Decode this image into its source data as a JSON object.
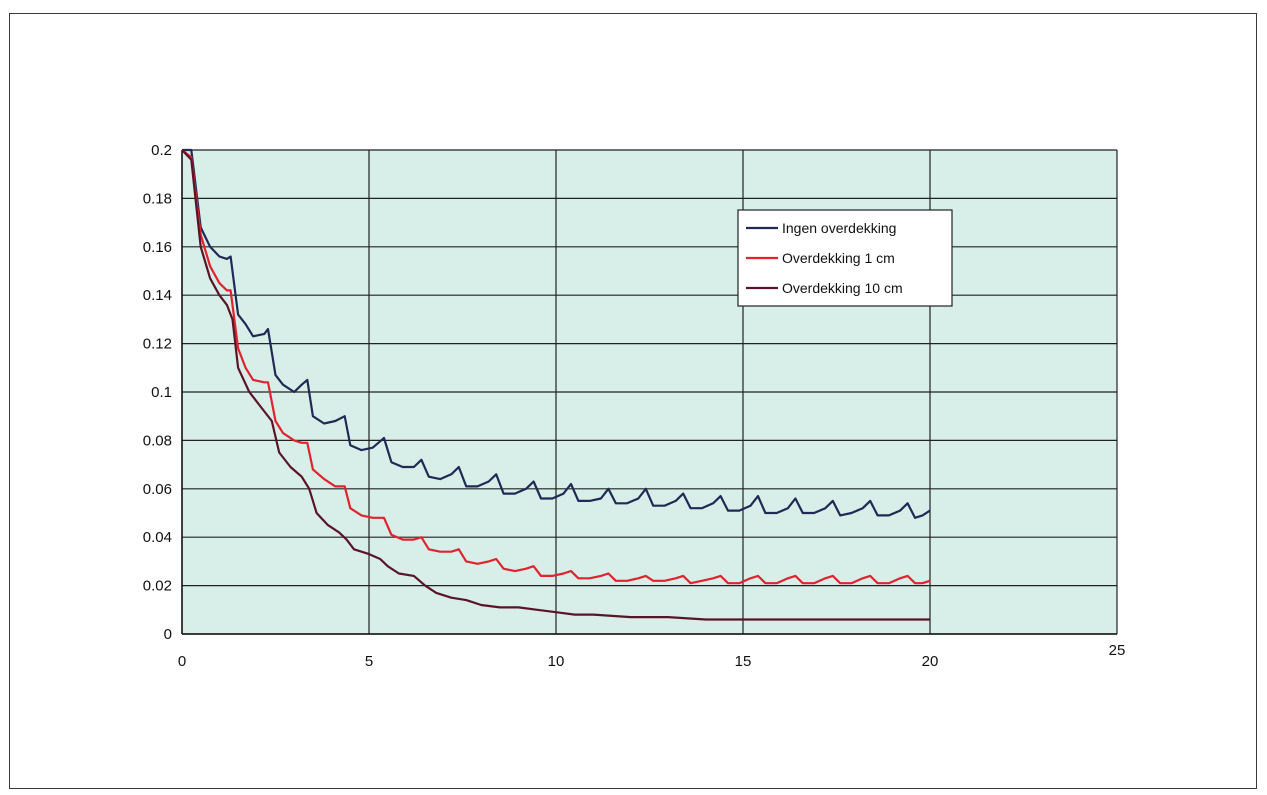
{
  "chart_data": {
    "type": "line",
    "title": "",
    "xlabel": "",
    "ylabel": "",
    "xlim": [
      0,
      25
    ],
    "ylim": [
      0,
      0.2
    ],
    "x_ticks": [
      0,
      5,
      10,
      15,
      20,
      25
    ],
    "y_ticks": [
      0,
      0.02,
      0.04,
      0.06,
      0.08,
      0.1,
      0.12,
      0.14,
      0.16,
      0.18,
      0.2
    ],
    "x_tick_labels": [
      "0",
      "5",
      "10",
      "15",
      "20",
      "25"
    ],
    "y_tick_labels": [
      "0",
      "0.02",
      "0.04",
      "0.06",
      "0.08",
      "0.1",
      "0.12",
      "0.14",
      "0.16",
      "0.18",
      "0.2"
    ],
    "grid": true,
    "legend_position": "top-right",
    "plot_background": "#d8eee8",
    "series": [
      {
        "name": "Ingen overdekking",
        "color": "#1f2a55",
        "points": [
          [
            0,
            0.2
          ],
          [
            0.25,
            0.2
          ],
          [
            0.5,
            0.168
          ],
          [
            0.75,
            0.16
          ],
          [
            1.0,
            0.156
          ],
          [
            1.2,
            0.155
          ],
          [
            1.3,
            0.156
          ],
          [
            1.5,
            0.132
          ],
          [
            1.7,
            0.128
          ],
          [
            1.9,
            0.123
          ],
          [
            2.2,
            0.124
          ],
          [
            2.3,
            0.126
          ],
          [
            2.5,
            0.107
          ],
          [
            2.7,
            0.103
          ],
          [
            3.0,
            0.1
          ],
          [
            3.2,
            0.103
          ],
          [
            3.35,
            0.105
          ],
          [
            3.5,
            0.09
          ],
          [
            3.8,
            0.087
          ],
          [
            4.1,
            0.088
          ],
          [
            4.35,
            0.09
          ],
          [
            4.5,
            0.078
          ],
          [
            4.8,
            0.076
          ],
          [
            5.1,
            0.077
          ],
          [
            5.4,
            0.081
          ],
          [
            5.6,
            0.071
          ],
          [
            5.9,
            0.069
          ],
          [
            6.2,
            0.069
          ],
          [
            6.4,
            0.072
          ],
          [
            6.6,
            0.065
          ],
          [
            6.9,
            0.064
          ],
          [
            7.2,
            0.066
          ],
          [
            7.4,
            0.069
          ],
          [
            7.6,
            0.061
          ],
          [
            7.9,
            0.061
          ],
          [
            8.2,
            0.063
          ],
          [
            8.4,
            0.066
          ],
          [
            8.6,
            0.058
          ],
          [
            8.9,
            0.058
          ],
          [
            9.2,
            0.06
          ],
          [
            9.4,
            0.063
          ],
          [
            9.6,
            0.056
          ],
          [
            9.9,
            0.056
          ],
          [
            10.2,
            0.058
          ],
          [
            10.4,
            0.062
          ],
          [
            10.6,
            0.055
          ],
          [
            10.9,
            0.055
          ],
          [
            11.2,
            0.056
          ],
          [
            11.4,
            0.06
          ],
          [
            11.6,
            0.054
          ],
          [
            11.9,
            0.054
          ],
          [
            12.2,
            0.056
          ],
          [
            12.4,
            0.06
          ],
          [
            12.6,
            0.053
          ],
          [
            12.9,
            0.053
          ],
          [
            13.2,
            0.055
          ],
          [
            13.4,
            0.058
          ],
          [
            13.6,
            0.052
          ],
          [
            13.9,
            0.052
          ],
          [
            14.2,
            0.054
          ],
          [
            14.4,
            0.057
          ],
          [
            14.6,
            0.051
          ],
          [
            14.9,
            0.051
          ],
          [
            15.2,
            0.053
          ],
          [
            15.4,
            0.057
          ],
          [
            15.6,
            0.05
          ],
          [
            15.9,
            0.05
          ],
          [
            16.2,
            0.052
          ],
          [
            16.4,
            0.056
          ],
          [
            16.6,
            0.05
          ],
          [
            16.9,
            0.05
          ],
          [
            17.2,
            0.052
          ],
          [
            17.4,
            0.055
          ],
          [
            17.6,
            0.049
          ],
          [
            17.9,
            0.05
          ],
          [
            18.2,
            0.052
          ],
          [
            18.4,
            0.055
          ],
          [
            18.6,
            0.049
          ],
          [
            18.9,
            0.049
          ],
          [
            19.2,
            0.051
          ],
          [
            19.4,
            0.054
          ],
          [
            19.6,
            0.048
          ],
          [
            19.8,
            0.049
          ],
          [
            20.0,
            0.051
          ]
        ]
      },
      {
        "name": "Overdekking 1 cm",
        "color": "#e0232e",
        "points": [
          [
            0,
            0.2
          ],
          [
            0.25,
            0.197
          ],
          [
            0.5,
            0.165
          ],
          [
            0.75,
            0.152
          ],
          [
            1.0,
            0.145
          ],
          [
            1.2,
            0.142
          ],
          [
            1.3,
            0.142
          ],
          [
            1.5,
            0.118
          ],
          [
            1.7,
            0.11
          ],
          [
            1.9,
            0.105
          ],
          [
            2.2,
            0.104
          ],
          [
            2.3,
            0.104
          ],
          [
            2.5,
            0.088
          ],
          [
            2.7,
            0.083
          ],
          [
            3.0,
            0.08
          ],
          [
            3.2,
            0.079
          ],
          [
            3.35,
            0.079
          ],
          [
            3.5,
            0.068
          ],
          [
            3.8,
            0.064
          ],
          [
            4.1,
            0.061
          ],
          [
            4.35,
            0.061
          ],
          [
            4.5,
            0.052
          ],
          [
            4.8,
            0.049
          ],
          [
            5.1,
            0.048
          ],
          [
            5.4,
            0.048
          ],
          [
            5.6,
            0.041
          ],
          [
            5.9,
            0.039
          ],
          [
            6.2,
            0.039
          ],
          [
            6.4,
            0.04
          ],
          [
            6.6,
            0.035
          ],
          [
            6.9,
            0.034
          ],
          [
            7.2,
            0.034
          ],
          [
            7.4,
            0.035
          ],
          [
            7.6,
            0.03
          ],
          [
            7.9,
            0.029
          ],
          [
            8.2,
            0.03
          ],
          [
            8.4,
            0.031
          ],
          [
            8.6,
            0.027
          ],
          [
            8.9,
            0.026
          ],
          [
            9.2,
            0.027
          ],
          [
            9.4,
            0.028
          ],
          [
            9.6,
            0.024
          ],
          [
            9.9,
            0.024
          ],
          [
            10.2,
            0.025
          ],
          [
            10.4,
            0.026
          ],
          [
            10.6,
            0.023
          ],
          [
            10.9,
            0.023
          ],
          [
            11.2,
            0.024
          ],
          [
            11.4,
            0.025
          ],
          [
            11.6,
            0.022
          ],
          [
            11.9,
            0.022
          ],
          [
            12.2,
            0.023
          ],
          [
            12.4,
            0.024
          ],
          [
            12.6,
            0.022
          ],
          [
            12.9,
            0.022
          ],
          [
            13.2,
            0.023
          ],
          [
            13.4,
            0.024
          ],
          [
            13.6,
            0.021
          ],
          [
            13.9,
            0.022
          ],
          [
            14.2,
            0.023
          ],
          [
            14.4,
            0.024
          ],
          [
            14.6,
            0.021
          ],
          [
            14.9,
            0.021
          ],
          [
            15.2,
            0.023
          ],
          [
            15.4,
            0.024
          ],
          [
            15.6,
            0.021
          ],
          [
            15.9,
            0.021
          ],
          [
            16.2,
            0.023
          ],
          [
            16.4,
            0.024
          ],
          [
            16.6,
            0.021
          ],
          [
            16.9,
            0.021
          ],
          [
            17.2,
            0.023
          ],
          [
            17.4,
            0.024
          ],
          [
            17.6,
            0.021
          ],
          [
            17.9,
            0.021
          ],
          [
            18.2,
            0.023
          ],
          [
            18.4,
            0.024
          ],
          [
            18.6,
            0.021
          ],
          [
            18.9,
            0.021
          ],
          [
            19.2,
            0.023
          ],
          [
            19.4,
            0.024
          ],
          [
            19.6,
            0.021
          ],
          [
            19.8,
            0.021
          ],
          [
            20.0,
            0.022
          ]
        ]
      },
      {
        "name": "Overdekking 10 cm",
        "color": "#5a1428",
        "points": [
          [
            0,
            0.2
          ],
          [
            0.25,
            0.196
          ],
          [
            0.5,
            0.16
          ],
          [
            0.75,
            0.147
          ],
          [
            1.0,
            0.14
          ],
          [
            1.2,
            0.136
          ],
          [
            1.35,
            0.13
          ],
          [
            1.5,
            0.11
          ],
          [
            1.8,
            0.1
          ],
          [
            2.1,
            0.094
          ],
          [
            2.4,
            0.088
          ],
          [
            2.6,
            0.075
          ],
          [
            2.9,
            0.069
          ],
          [
            3.2,
            0.065
          ],
          [
            3.4,
            0.06
          ],
          [
            3.6,
            0.05
          ],
          [
            3.9,
            0.045
          ],
          [
            4.2,
            0.042
          ],
          [
            4.4,
            0.039
          ],
          [
            4.6,
            0.035
          ],
          [
            5.0,
            0.033
          ],
          [
            5.3,
            0.031
          ],
          [
            5.5,
            0.028
          ],
          [
            5.8,
            0.025
          ],
          [
            6.2,
            0.024
          ],
          [
            6.5,
            0.02
          ],
          [
            6.8,
            0.017
          ],
          [
            7.2,
            0.015
          ],
          [
            7.6,
            0.014
          ],
          [
            8.0,
            0.012
          ],
          [
            8.5,
            0.011
          ],
          [
            9.0,
            0.011
          ],
          [
            9.5,
            0.01
          ],
          [
            10.0,
            0.009
          ],
          [
            10.5,
            0.008
          ],
          [
            11.0,
            0.008
          ],
          [
            12.0,
            0.007
          ],
          [
            13.0,
            0.007
          ],
          [
            14.0,
            0.006
          ],
          [
            15.0,
            0.006
          ],
          [
            16.0,
            0.006
          ],
          [
            17.0,
            0.006
          ],
          [
            18.0,
            0.006
          ],
          [
            19.0,
            0.006
          ],
          [
            20.0,
            0.006
          ]
        ]
      }
    ]
  }
}
